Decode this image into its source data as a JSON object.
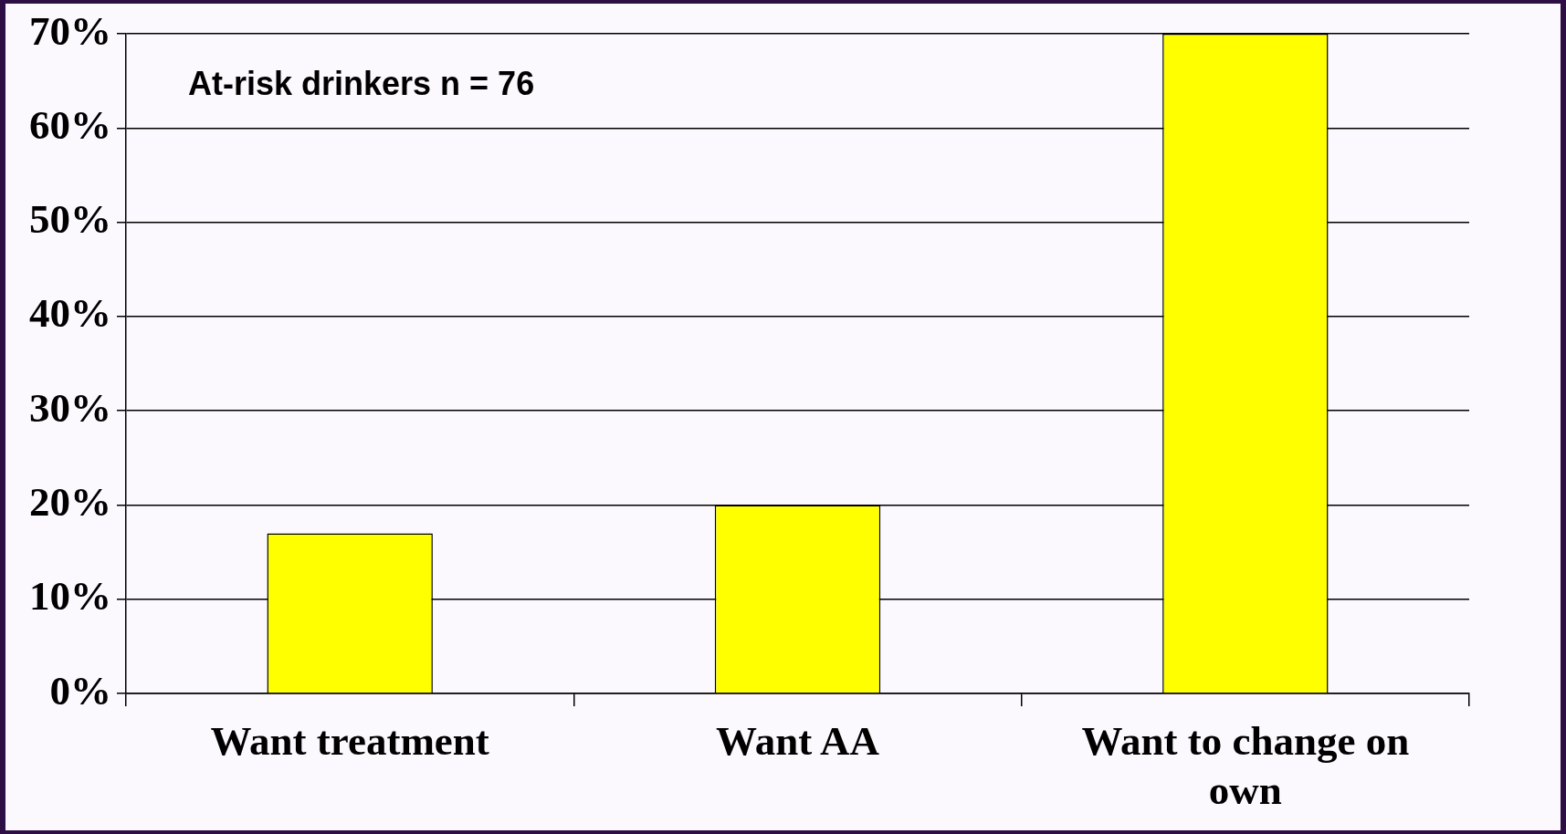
{
  "chart_data": {
    "type": "bar",
    "categories": [
      "Want treatment",
      "Want AA",
      "Want to change on own"
    ],
    "values": [
      17,
      20,
      70
    ],
    "color": "#ffff00",
    "ylim": [
      0,
      70
    ],
    "yticks": [
      {
        "value": 0,
        "label": "0%"
      },
      {
        "value": 10,
        "label": "10%"
      },
      {
        "value": 20,
        "label": "20%"
      },
      {
        "value": 30,
        "label": "30%"
      },
      {
        "value": 40,
        "label": "40%"
      },
      {
        "value": 50,
        "label": "50%"
      },
      {
        "value": 60,
        "label": "60%"
      },
      {
        "value": 70,
        "label": "70%"
      }
    ],
    "grid": "y",
    "legend": false,
    "annotations": [
      "At-risk drinkers n = 76"
    ]
  }
}
